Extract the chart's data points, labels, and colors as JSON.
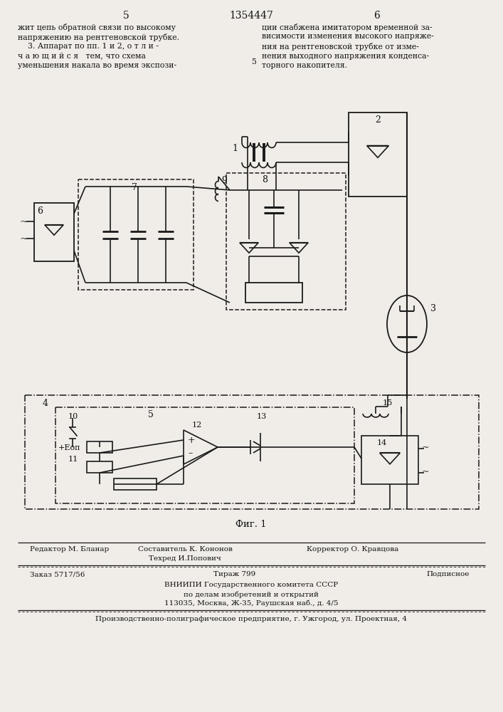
{
  "bg_color": "#f0ede8",
  "line_color": "#1a1a1a",
  "text_color": "#111111",
  "page_num_left": "5",
  "patent_num": "1354447",
  "page_num_right": "6",
  "fig_caption": "Фиг. 1",
  "left_col_lines": [
    "жит цепь обратной связи по высокому",
    "напряжению на рентгеновской трубке.",
    "    3. Аппарат по пп. 1 и 2, о т л и -",
    "ч а ю щ и й с я   тем, что схема",
    "уменьшения накала во время экспози-"
  ],
  "right_col_lines": [
    "ции снабжена имитатором временной за-",
    "висимости изменения высокого напряже-",
    "ния на рентгеновской трубке от изме-",
    "нения выходного напряжения конденса-",
    "торного накопителя."
  ],
  "bottom_editor": "Редактор М. Бланар",
  "bottom_sostavitel": "Составитель К. Кононов",
  "bottom_tehred": "Техред И.Попович",
  "bottom_korrektor": "Корректор О. Кравцова",
  "bottom_zakaz": "Заказ 5717/56",
  "bottom_tirazh": "Тираж 799",
  "bottom_podp": "Подписное",
  "bottom_vn1": "ВНИИПИ Государственного комитета СССР",
  "bottom_vn2": "по делам изобретений и открытий",
  "bottom_vn3": "113035, Москва, Ж-35, Раушская наб., д. 4/5",
  "bottom_last": "Производственно-полиграфическое предприятие, г. Ужгород, ул. Проектная, 4"
}
